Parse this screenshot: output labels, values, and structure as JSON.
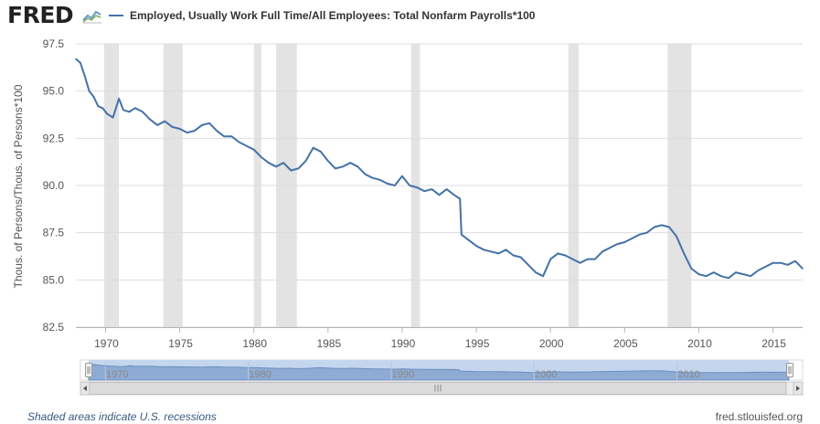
{
  "header": {
    "logo_text": "FRED",
    "logo_icon": "line-graph-icon"
  },
  "legend": {
    "label": "Employed, Usually Work Full Time/All Employees: Total Nonfarm Payrolls*100",
    "color": "#4572a7"
  },
  "footer": {
    "note": "Shaded areas indicate U.S. recessions",
    "source": "fred.stlouisfed.org"
  },
  "chart_data": {
    "type": "line",
    "title": "",
    "xlabel": "",
    "ylabel": "Thous. of Persons/Thous. of Persons*100",
    "xlim": [
      1968,
      2017
    ],
    "ylim": [
      82.5,
      97.5
    ],
    "y_ticks": [
      "82.5",
      "85.0",
      "87.5",
      "90.0",
      "92.5",
      "95.0",
      "97.5"
    ],
    "x_ticks": [
      "1970",
      "1975",
      "1980",
      "1985",
      "1990",
      "1995",
      "2000",
      "2005",
      "2010",
      "2015"
    ],
    "grid": "horizontal",
    "line_color": "#4572a7",
    "recession_color": "#e3e3e3",
    "recessions": [
      [
        1969.9,
        1970.9
      ],
      [
        1973.9,
        1975.2
      ],
      [
        1980.0,
        1980.5
      ],
      [
        1981.5,
        1982.9
      ],
      [
        1990.6,
        1991.2
      ],
      [
        2001.2,
        2001.9
      ],
      [
        2007.9,
        2009.5
      ]
    ],
    "series": [
      {
        "name": "Employed, Usually Work Full Time/All Employees: Total Nonfarm Payrolls*100",
        "x": [
          1968.0,
          1968.3,
          1968.6,
          1968.9,
          1969.2,
          1969.5,
          1969.8,
          1970.1,
          1970.5,
          1970.9,
          1971.2,
          1971.6,
          1972.0,
          1972.5,
          1973.0,
          1973.5,
          1974.0,
          1974.5,
          1975.0,
          1975.5,
          1976.0,
          1976.5,
          1977.0,
          1977.5,
          1978.0,
          1978.5,
          1979.0,
          1979.5,
          1980.0,
          1980.5,
          1981.0,
          1981.5,
          1982.0,
          1982.5,
          1983.0,
          1983.5,
          1984.0,
          1984.5,
          1985.0,
          1985.5,
          1986.0,
          1986.5,
          1987.0,
          1987.5,
          1988.0,
          1988.5,
          1989.0,
          1989.5,
          1990.0,
          1990.5,
          1991.0,
          1991.5,
          1992.0,
          1992.5,
          1993.0,
          1993.5,
          1993.9,
          1994.0,
          1994.5,
          1995.0,
          1995.5,
          1996.0,
          1996.5,
          1997.0,
          1997.5,
          1998.0,
          1998.5,
          1999.0,
          1999.5,
          2000.0,
          2000.5,
          2001.0,
          2001.5,
          2002.0,
          2002.5,
          2003.0,
          2003.5,
          2004.0,
          2004.5,
          2005.0,
          2005.5,
          2006.0,
          2006.5,
          2007.0,
          2007.5,
          2008.0,
          2008.5,
          2009.0,
          2009.5,
          2010.0,
          2010.5,
          2011.0,
          2011.5,
          2012.0,
          2012.5,
          2013.0,
          2013.5,
          2014.0,
          2014.5,
          2015.0,
          2015.5,
          2016.0,
          2016.5,
          2017.0
        ],
        "values": [
          96.7,
          96.5,
          95.8,
          95.0,
          94.7,
          94.2,
          94.1,
          93.8,
          93.6,
          94.6,
          94.0,
          93.9,
          94.1,
          93.9,
          93.5,
          93.2,
          93.4,
          93.1,
          93.0,
          92.8,
          92.9,
          93.2,
          93.3,
          92.9,
          92.6,
          92.6,
          92.3,
          92.1,
          91.9,
          91.5,
          91.2,
          91.0,
          91.2,
          90.8,
          90.9,
          91.3,
          92.0,
          91.8,
          91.3,
          90.9,
          91.0,
          91.2,
          91.0,
          90.6,
          90.4,
          90.3,
          90.1,
          90.0,
          90.5,
          90.0,
          89.9,
          89.7,
          89.8,
          89.5,
          89.8,
          89.5,
          89.3,
          87.4,
          87.1,
          86.8,
          86.6,
          86.5,
          86.4,
          86.6,
          86.3,
          86.2,
          85.8,
          85.4,
          85.2,
          86.1,
          86.4,
          86.3,
          86.1,
          85.9,
          86.1,
          86.1,
          86.5,
          86.7,
          86.9,
          87.0,
          87.2,
          87.4,
          87.5,
          87.8,
          87.9,
          87.8,
          87.3,
          86.4,
          85.6,
          85.3,
          85.2,
          85.4,
          85.2,
          85.1,
          85.4,
          85.3,
          85.2,
          85.5,
          85.7,
          85.9,
          85.9,
          85.8,
          86.0,
          85.6
        ]
      }
    ]
  },
  "navigator": {
    "x_ticks": [
      "1970",
      "1980",
      "1990",
      "2000",
      "2010"
    ],
    "scroll_grip": "III"
  }
}
